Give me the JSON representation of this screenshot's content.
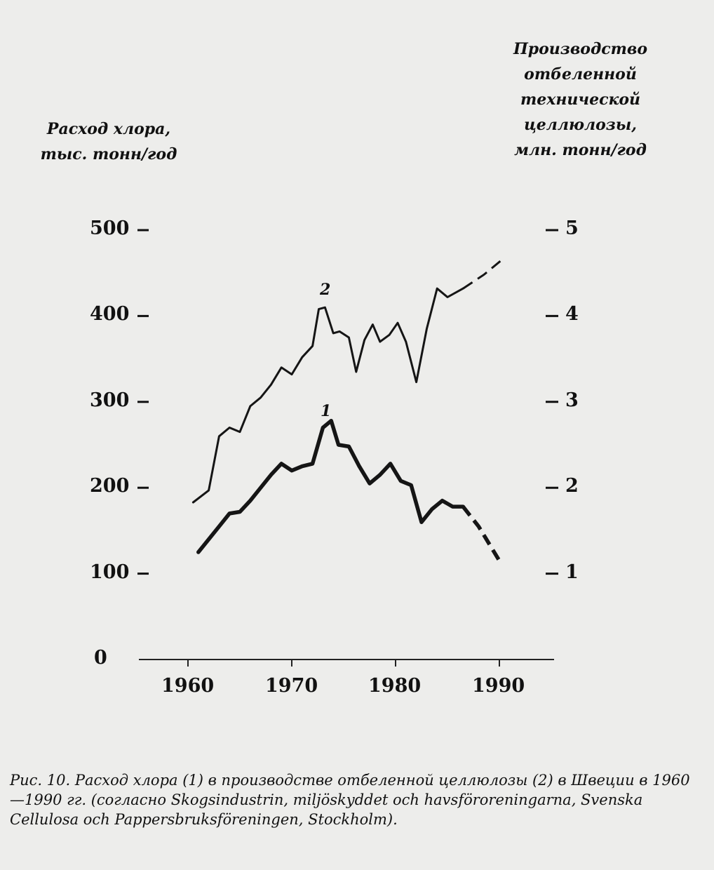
{
  "chart_data": {
    "type": "line",
    "left_axis_title": [
      "Расход хлора,",
      "тыс. тонн/год"
    ],
    "right_axis_title": [
      "Производство",
      "отбеленной",
      "технической",
      "целлюлозы,",
      "млн. тонн/год"
    ],
    "x_ticks": [
      "1960",
      "1970",
      "1980",
      "1990"
    ],
    "y_left_ticks": [
      "0",
      "100",
      "200",
      "300",
      "400",
      "500"
    ],
    "y_right_ticks": [
      "1",
      "2",
      "3",
      "4",
      "5"
    ],
    "xlim": [
      1960,
      1990
    ],
    "ylim_left": [
      0,
      500
    ],
    "ylim_right": [
      0,
      5
    ],
    "grid": false,
    "series": [
      {
        "name": "1",
        "axis": "left",
        "stroke": "thick",
        "x": [
          1961,
          1963,
          1964,
          1965,
          1966,
          1967,
          1968,
          1969,
          1970,
          1971,
          1972,
          1973,
          1973.8,
          1974.5,
          1975.5,
          1976.5,
          1977.5,
          1978.5,
          1979.5,
          1980.5,
          1981.5,
          1982.5,
          1983.5,
          1984.5,
          1985.5,
          1986.5
        ],
        "y": [
          125,
          155,
          170,
          172,
          185,
          200,
          215,
          228,
          220,
          225,
          228,
          270,
          278,
          250,
          248,
          225,
          205,
          215,
          228,
          208,
          203,
          160,
          175,
          185,
          178,
          178
        ],
        "projected_x": [
          1986.5,
          1988,
          1990
        ],
        "projected_y": [
          178,
          155,
          115
        ]
      },
      {
        "name": "2",
        "axis": "right",
        "stroke": "thin",
        "x": [
          1960.5,
          1962,
          1963,
          1964,
          1965,
          1966,
          1967,
          1968,
          1969,
          1970,
          1971,
          1972,
          1972.6,
          1973.2,
          1974,
          1974.6,
          1975.5,
          1976.2,
          1977,
          1977.8,
          1978.5,
          1979.4,
          1980.2,
          1981,
          1982,
          1983,
          1984,
          1985,
          1986.5
        ],
        "y": [
          1.83,
          1.97,
          2.6,
          2.7,
          2.65,
          2.95,
          3.05,
          3.2,
          3.4,
          3.32,
          3.52,
          3.65,
          4.08,
          4.1,
          3.8,
          3.82,
          3.75,
          3.35,
          3.72,
          3.9,
          3.7,
          3.78,
          3.92,
          3.7,
          3.23,
          3.85,
          4.32,
          4.22,
          4.32
        ],
        "projected_x": [
          1986.5,
          1988.5,
          1990.5
        ],
        "projected_y": [
          4.32,
          4.48,
          4.68
        ]
      }
    ]
  },
  "caption": "Рис. 10. Расход хлора (1) в производстве отбеленной целлюлозы (2) в Швеции в 1960—1990 гг. (согласно Skogsindustrin, miljöskyddet och havsföroreningarna, Svenska Cellulosa och Pappersbruksföreningen, Stockholm)."
}
